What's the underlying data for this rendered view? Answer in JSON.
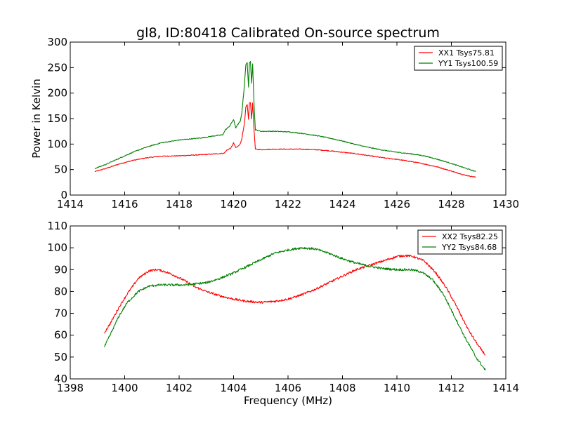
{
  "figure": {
    "title": "gl8, ID:80418 Calibrated On-source spectrum"
  },
  "colors": {
    "red": "#ff0000",
    "green": "#008000",
    "axes": "#000000",
    "background": "#ffffff"
  },
  "chart_data": [
    {
      "type": "line",
      "title": "gl8, ID:80418 Calibrated On-source spectrum",
      "xlabel": "",
      "ylabel": "Power in Kelvin",
      "xlim": [
        1414,
        1430
      ],
      "ylim": [
        0,
        300
      ],
      "xticks": [
        "1414",
        "1416",
        "1418",
        "1420",
        "1422",
        "1424",
        "1426",
        "1428",
        "1430"
      ],
      "yticks": [
        "0",
        "50",
        "100",
        "150",
        "200",
        "250",
        "300"
      ],
      "grid": false,
      "legend_position": "top-right",
      "series": [
        {
          "name": "XX1 Tsys75.81",
          "color": "#ff0000",
          "x": [
            1414.9,
            1415.3,
            1415.8,
            1416.3,
            1416.8,
            1417.3,
            1418.0,
            1418.8,
            1419.4,
            1419.65,
            1419.75,
            1419.9,
            1420.0,
            1420.08,
            1420.15,
            1420.25,
            1420.3,
            1420.4,
            1420.45,
            1420.5,
            1420.55,
            1420.58,
            1420.62,
            1420.66,
            1420.7,
            1420.75,
            1420.8,
            1421.0,
            1421.5,
            1422.0,
            1422.5,
            1423.0,
            1423.5,
            1424.0,
            1424.5,
            1425.0,
            1425.5,
            1426.0,
            1426.5,
            1427.0,
            1427.5,
            1428.0,
            1428.5,
            1428.9
          ],
          "y": [
            46,
            52,
            61,
            68,
            73,
            76,
            77,
            79,
            81,
            82,
            88,
            92,
            102,
            93,
            95,
            101,
            110,
            140,
            172,
            178,
            148,
            180,
            182,
            150,
            180,
            130,
            90,
            89,
            90,
            90,
            90,
            89,
            87,
            84,
            81,
            77,
            73,
            70,
            66,
            61,
            55,
            47,
            39,
            35
          ]
        },
        {
          "name": "YY1 Tsys100.59",
          "color": "#008000",
          "x": [
            1414.9,
            1415.3,
            1415.8,
            1416.3,
            1416.8,
            1417.3,
            1418.0,
            1418.8,
            1419.4,
            1419.6,
            1419.7,
            1419.85,
            1420.0,
            1420.08,
            1420.15,
            1420.25,
            1420.3,
            1420.38,
            1420.45,
            1420.5,
            1420.55,
            1420.58,
            1420.62,
            1420.66,
            1420.7,
            1420.75,
            1420.8,
            1421.0,
            1421.5,
            1422.0,
            1422.5,
            1423.0,
            1423.5,
            1424.0,
            1424.5,
            1425.0,
            1425.5,
            1426.0,
            1426.5,
            1427.0,
            1427.5,
            1428.0,
            1428.5,
            1428.9
          ],
          "y": [
            52,
            60,
            72,
            84,
            94,
            102,
            108,
            112,
            117,
            118,
            128,
            135,
            148,
            132,
            138,
            145,
            160,
            205,
            255,
            260,
            212,
            258,
            262,
            220,
            258,
            180,
            128,
            125,
            125,
            124,
            121,
            117,
            112,
            106,
            99,
            93,
            88,
            84,
            81,
            77,
            70,
            62,
            53,
            46
          ]
        }
      ]
    },
    {
      "type": "line",
      "title": "",
      "xlabel": "Frequency (MHz)",
      "ylabel": "",
      "xlim": [
        1398,
        1414
      ],
      "ylim": [
        40,
        110
      ],
      "xticks": [
        "1398",
        "1400",
        "1402",
        "1404",
        "1406",
        "1408",
        "1410",
        "1412",
        "1414"
      ],
      "yticks": [
        "40",
        "50",
        "60",
        "70",
        "80",
        "90",
        "100",
        "110"
      ],
      "grid": false,
      "legend_position": "top-right",
      "series": [
        {
          "name": "XX2 Tsys82.25",
          "color": "#ff0000",
          "x": [
            1399.25,
            1399.5,
            1399.8,
            1400.1,
            1400.5,
            1400.9,
            1401.2,
            1401.5,
            1401.8,
            1402.2,
            1402.6,
            1403.0,
            1403.5,
            1404.0,
            1404.5,
            1405.0,
            1405.5,
            1406.0,
            1406.5,
            1407.0,
            1407.5,
            1408.0,
            1408.5,
            1409.0,
            1409.5,
            1410.0,
            1410.3,
            1410.6,
            1411.0,
            1411.4,
            1411.8,
            1412.2,
            1412.6,
            1413.0,
            1413.25
          ],
          "y": [
            61,
            66,
            73,
            79,
            86,
            89.5,
            90,
            89,
            87.5,
            85,
            82,
            80,
            78,
            76.5,
            75.5,
            75,
            75.5,
            76.5,
            78.5,
            81,
            84,
            87,
            90,
            92,
            94,
            96,
            96.5,
            96,
            94,
            89,
            82,
            73,
            63,
            55,
            51
          ]
        },
        {
          "name": "YY2 Tsys84.68",
          "color": "#008000",
          "x": [
            1399.25,
            1399.5,
            1399.8,
            1400.1,
            1400.5,
            1400.9,
            1401.3,
            1401.7,
            1402.2,
            1402.6,
            1403.0,
            1403.5,
            1404.0,
            1404.5,
            1405.0,
            1405.5,
            1406.0,
            1406.5,
            1407.0,
            1407.5,
            1408.0,
            1408.5,
            1409.0,
            1409.5,
            1410.0,
            1410.5,
            1410.9,
            1411.3,
            1411.7,
            1412.1,
            1412.5,
            1412.9,
            1413.25
          ],
          "y": [
            54.5,
            61,
            69,
            75,
            80,
            82.5,
            83,
            83,
            83,
            83.5,
            84,
            86,
            88.5,
            91.5,
            94.5,
            97.5,
            99,
            100,
            99.5,
            97.5,
            95,
            93,
            91.5,
            90.5,
            90,
            90,
            89,
            85.5,
            79,
            69,
            59,
            50,
            44
          ]
        }
      ]
    }
  ]
}
